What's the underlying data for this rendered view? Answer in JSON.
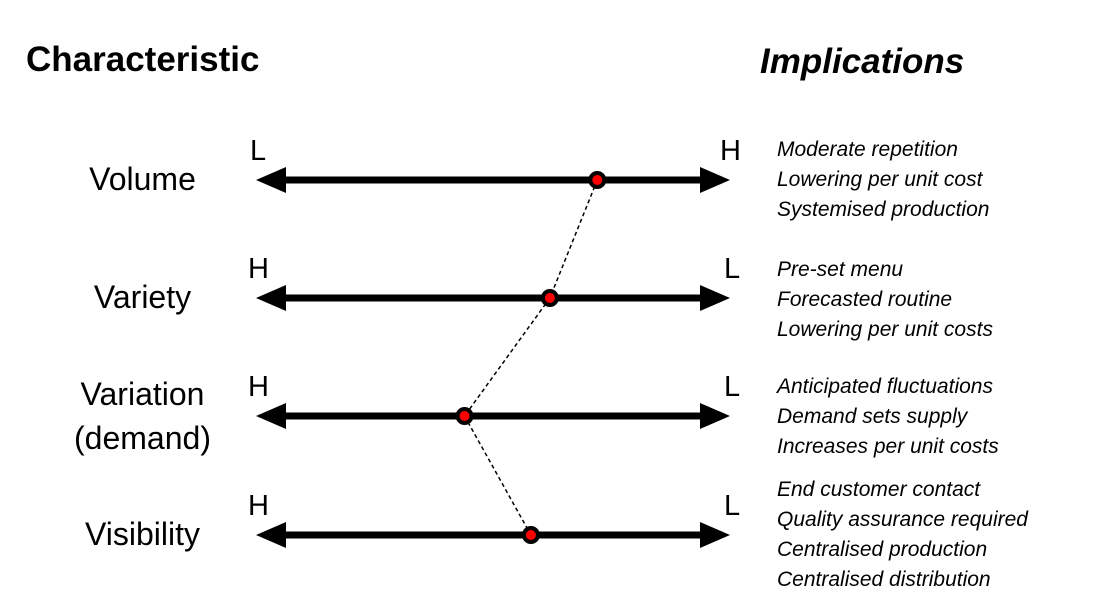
{
  "headers": {
    "characteristic": "Characteristic",
    "implications": "Implications"
  },
  "dot_color": "#ff0000",
  "rows": [
    {
      "label": "Volume",
      "left": "L",
      "right": "H",
      "position": 0.72,
      "implications": [
        "Moderate repetition",
        "Lowering per unit cost",
        "Systemised production"
      ]
    },
    {
      "label": "Variety",
      "left": "H",
      "right": "L",
      "position": 0.62,
      "implications": [
        "Pre-set menu",
        "Forecasted routine",
        "Lowering per unit costs"
      ]
    },
    {
      "label": "Variation\n(demand)",
      "left": "H",
      "right": "L",
      "position": 0.44,
      "implications": [
        "Anticipated fluctuations",
        "Demand sets supply",
        "Increases per unit costs"
      ]
    },
    {
      "label": "Visibility",
      "left": "H",
      "right": "L",
      "position": 0.58,
      "implications": [
        "End customer contact",
        "Quality assurance required",
        "Centralised production",
        "Centralised distribution"
      ]
    }
  ]
}
